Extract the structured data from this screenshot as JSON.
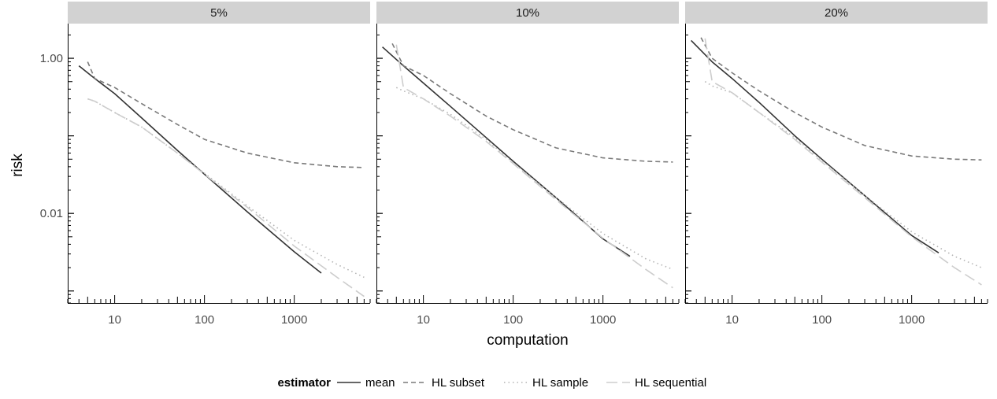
{
  "chart_data": {
    "type": "line",
    "xlabel": "computation",
    "ylabel": "risk",
    "x_scale": "log10",
    "y_scale": "log10",
    "xlim": [
      3,
      7000
    ],
    "ylim": [
      0.0007,
      2.8
    ],
    "x_ticks": [
      10,
      100,
      1000
    ],
    "x_tick_labels": [
      "10",
      "100",
      "1000"
    ],
    "y_ticks": [
      1,
      0.01
    ],
    "y_tick_labels": [
      "1.00",
      "0.01"
    ],
    "grid": false,
    "facets": [
      "5%",
      "10%",
      "20%"
    ],
    "legend": {
      "title": "estimator",
      "position": "bottom",
      "entries": [
        "mean",
        "HL subset",
        "HL sample",
        "HL sequential"
      ]
    },
    "series_styles": [
      {
        "name": "mean",
        "color": "#333333",
        "dash": ""
      },
      {
        "name": "HL subset",
        "color": "#7a7a7a",
        "dash": "6,4"
      },
      {
        "name": "HL sample",
        "color": "#b4b4b4",
        "dash": "1.5,4"
      },
      {
        "name": "HL sequential",
        "color": "#cdcdcd",
        "dash": "14,6"
      }
    ],
    "panels": [
      {
        "facet": "5%",
        "series": [
          {
            "name": "mean",
            "x": [
              4,
              6,
              10,
              20,
              50,
              100,
              300,
              1000,
              2000
            ],
            "y": [
              0.8,
              0.55,
              0.35,
              0.17,
              0.065,
              0.032,
              0.0105,
              0.0032,
              0.0017
            ]
          },
          {
            "name": "HL subset",
            "x": [
              5,
              6,
              10,
              20,
              50,
              100,
              300,
              1000,
              3000,
              6000
            ],
            "y": [
              0.9,
              0.55,
              0.42,
              0.26,
              0.14,
              0.09,
              0.06,
              0.045,
              0.04,
              0.039
            ]
          },
          {
            "name": "HL sample",
            "x": [
              5,
              6,
              10,
              20,
              50,
              100,
              300,
              1000,
              3000,
              6000
            ],
            "y": [
              0.3,
              0.28,
              0.2,
              0.13,
              0.06,
              0.033,
              0.0125,
              0.0045,
              0.0022,
              0.0015
            ]
          },
          {
            "name": "HL sequential",
            "x": [
              5,
              6,
              10,
              20,
              50,
              100,
              300,
              1000,
              3000,
              6000
            ],
            "y": [
              0.3,
              0.28,
              0.2,
              0.13,
              0.06,
              0.032,
              0.012,
              0.0038,
              0.0015,
              0.00085
            ]
          }
        ]
      },
      {
        "facet": "10%",
        "series": [
          {
            "name": "mean",
            "x": [
              3.5,
              6,
              10,
              20,
              50,
              100,
              300,
              1000,
              2000
            ],
            "y": [
              1.4,
              0.8,
              0.48,
              0.24,
              0.095,
              0.047,
              0.016,
              0.0047,
              0.0028
            ]
          },
          {
            "name": "HL subset",
            "x": [
              4.5,
              6,
              10,
              20,
              50,
              100,
              300,
              1000,
              3000,
              6000
            ],
            "y": [
              1.55,
              0.8,
              0.6,
              0.35,
              0.18,
              0.12,
              0.07,
              0.052,
              0.047,
              0.046
            ]
          },
          {
            "name": "HL sample",
            "x": [
              5,
              6,
              10,
              20,
              50,
              100,
              300,
              1000,
              3000,
              6000
            ],
            "y": [
              0.42,
              0.38,
              0.3,
              0.19,
              0.09,
              0.045,
              0.016,
              0.0055,
              0.0026,
              0.0019
            ]
          },
          {
            "name": "HL sequential",
            "x": [
              5,
              6,
              10,
              20,
              50,
              100,
              300,
              1000,
              3000,
              6000
            ],
            "y": [
              1.5,
              0.42,
              0.3,
              0.18,
              0.085,
              0.044,
              0.015,
              0.0048,
              0.0019,
              0.0011
            ]
          }
        ]
      },
      {
        "facet": "20%",
        "series": [
          {
            "name": "mean",
            "x": [
              3.5,
              6,
              10,
              20,
              50,
              100,
              300,
              1000,
              2000
            ],
            "y": [
              1.7,
              0.9,
              0.55,
              0.27,
              0.1,
              0.05,
              0.017,
              0.0052,
              0.0031
            ]
          },
          {
            "name": "HL subset",
            "x": [
              4.5,
              6,
              10,
              20,
              50,
              100,
              300,
              1000,
              3000,
              6000
            ],
            "y": [
              1.85,
              1.0,
              0.65,
              0.38,
              0.2,
              0.13,
              0.075,
              0.055,
              0.05,
              0.049
            ]
          },
          {
            "name": "HL sample",
            "x": [
              5,
              6,
              10,
              20,
              50,
              100,
              300,
              1000,
              3000,
              6000
            ],
            "y": [
              0.5,
              0.44,
              0.36,
              0.2,
              0.095,
              0.048,
              0.017,
              0.0058,
              0.0028,
              0.002
            ]
          },
          {
            "name": "HL sequential",
            "x": [
              5,
              6,
              10,
              20,
              50,
              100,
              300,
              1000,
              3000,
              6000
            ],
            "y": [
              1.8,
              0.5,
              0.36,
              0.2,
              0.09,
              0.046,
              0.016,
              0.005,
              0.002,
              0.0012
            ]
          }
        ]
      }
    ]
  }
}
